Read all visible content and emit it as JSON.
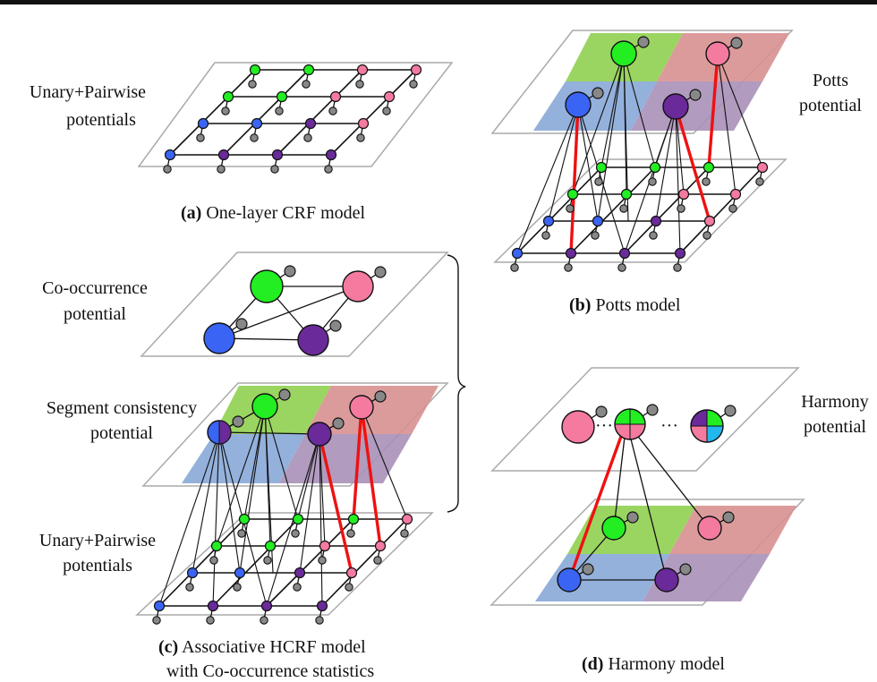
{
  "panels": {
    "a": {
      "caption_letter": "(a)",
      "caption_text": " One-layer CRF model",
      "side_label_lines": [
        "Unary+Pairwise",
        "potentials"
      ]
    },
    "b": {
      "caption_letter": "(b)",
      "caption_text": " Potts model",
      "side_label_lines": [
        "Potts",
        "potential"
      ]
    },
    "c": {
      "caption_letter": "(c)",
      "caption_line1": " Associative HCRF model",
      "caption_line2": "with Co-occurrence statistics",
      "label_cooc_lines": [
        "Co-occurrence",
        "potential"
      ],
      "label_segment_lines": [
        "Segment consistency",
        "potential"
      ],
      "label_unary_lines": [
        "Unary+Pairwise",
        "potentials"
      ]
    },
    "d": {
      "caption_letter": "(d)",
      "caption_text": " Harmony model",
      "side_label_lines": [
        "Harmony",
        "potential"
      ],
      "ellipsis": "···"
    }
  },
  "colors": {
    "green": "#22ee22",
    "pink": "#f47aa0",
    "blue": "#3a64f4",
    "purple": "#6a2a9a",
    "gray": "#888888",
    "cyan": "#22b8ee",
    "red_edge": "#ee1111",
    "region_green": "#90d050",
    "region_pink": "#d89090",
    "region_blue": "#88a8d8",
    "region_purple": "#a890b8"
  }
}
